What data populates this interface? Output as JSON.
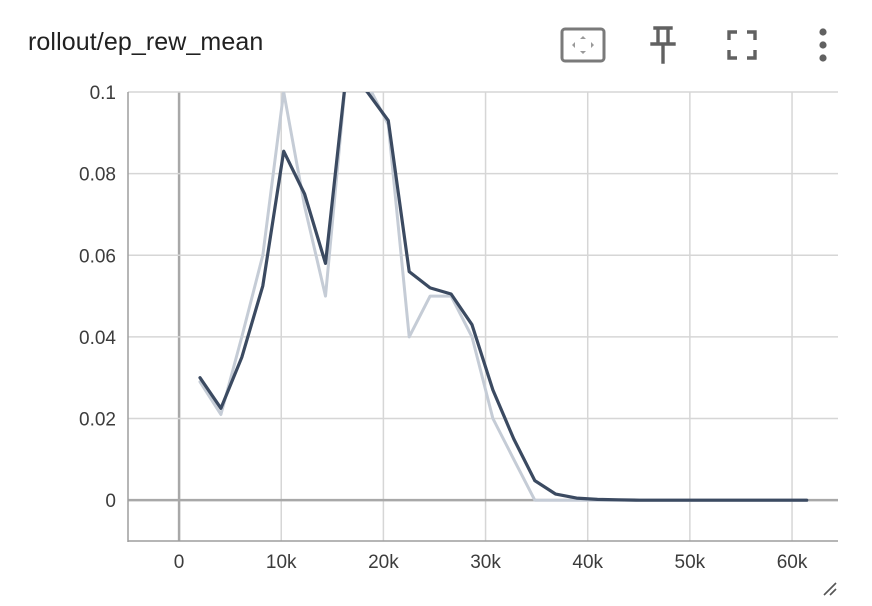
{
  "card": {
    "title": "rollout/ep_rew_mean"
  },
  "toolbar": {
    "icons": [
      "fit-domain-icon",
      "pin-icon",
      "fullscreen-icon",
      "more-vert-icon"
    ],
    "icon_color": "#616161",
    "fit_icon_color": "#7a7a7a"
  },
  "colors": {
    "smoothed_line": "#3b4a61",
    "raw_line": "#c5ccd6",
    "grid": "#d6d6d6",
    "zero_axis": "#a8a8a8",
    "frame": "#9e9e9e"
  },
  "chart_data": {
    "type": "line",
    "title": "rollout/ep_rew_mean",
    "xlabel": "",
    "ylabel": "",
    "xlim": [
      -5000,
      64500
    ],
    "ylim": [
      -0.01,
      0.1
    ],
    "x_ticks": [
      0,
      10000,
      20000,
      30000,
      40000,
      50000,
      60000
    ],
    "x_tick_labels": [
      "0",
      "10k",
      "20k",
      "30k",
      "40k",
      "50k",
      "60k"
    ],
    "y_ticks": [
      0,
      0.02,
      0.04,
      0.06,
      0.08,
      0.1
    ],
    "y_tick_labels": [
      "0",
      "0.02",
      "0.04",
      "0.06",
      "0.08",
      "0.1"
    ],
    "grid": true,
    "legend": "none",
    "series": [
      {
        "role": "raw",
        "x": [
          2048,
          4096,
          6144,
          8192,
          10240,
          12288,
          14336,
          16384,
          18432,
          20480,
          22528,
          24576,
          26624,
          28672,
          30720,
          32768,
          34816,
          36864,
          38912,
          40960,
          43008,
          45056,
          47104,
          49152,
          51200,
          53248,
          55296,
          57344,
          59392,
          61440
        ],
        "values": [
          0.029,
          0.021,
          0.04,
          0.06,
          0.1,
          0.072,
          0.05,
          0.105,
          0.102,
          0.092,
          0.04,
          0.05,
          0.05,
          0.04,
          0.02,
          0.01,
          0.0,
          0.0,
          0.0,
          0.0,
          0.0,
          0.0,
          0.0,
          0.0,
          0.0,
          0.0,
          0.0,
          0.0,
          0.0,
          0.0
        ]
      },
      {
        "role": "smoothed",
        "x": [
          2048,
          4096,
          6144,
          8192,
          10240,
          12288,
          14336,
          16384,
          18432,
          20480,
          22528,
          24576,
          26624,
          28672,
          30720,
          32768,
          34816,
          36864,
          38912,
          40960,
          43008,
          45056,
          47104,
          49152,
          51200,
          53248,
          55296,
          57344,
          59392,
          61440
        ],
        "values": [
          0.03,
          0.0225,
          0.035,
          0.0525,
          0.0855,
          0.075,
          0.058,
          0.105,
          0.1,
          0.093,
          0.056,
          0.052,
          0.0505,
          0.043,
          0.027,
          0.015,
          0.0048,
          0.0015,
          0.0005,
          0.0002,
          0.0001,
          0.0,
          0.0,
          0.0,
          0.0,
          0.0,
          0.0,
          0.0,
          0.0,
          0.0
        ]
      }
    ]
  }
}
